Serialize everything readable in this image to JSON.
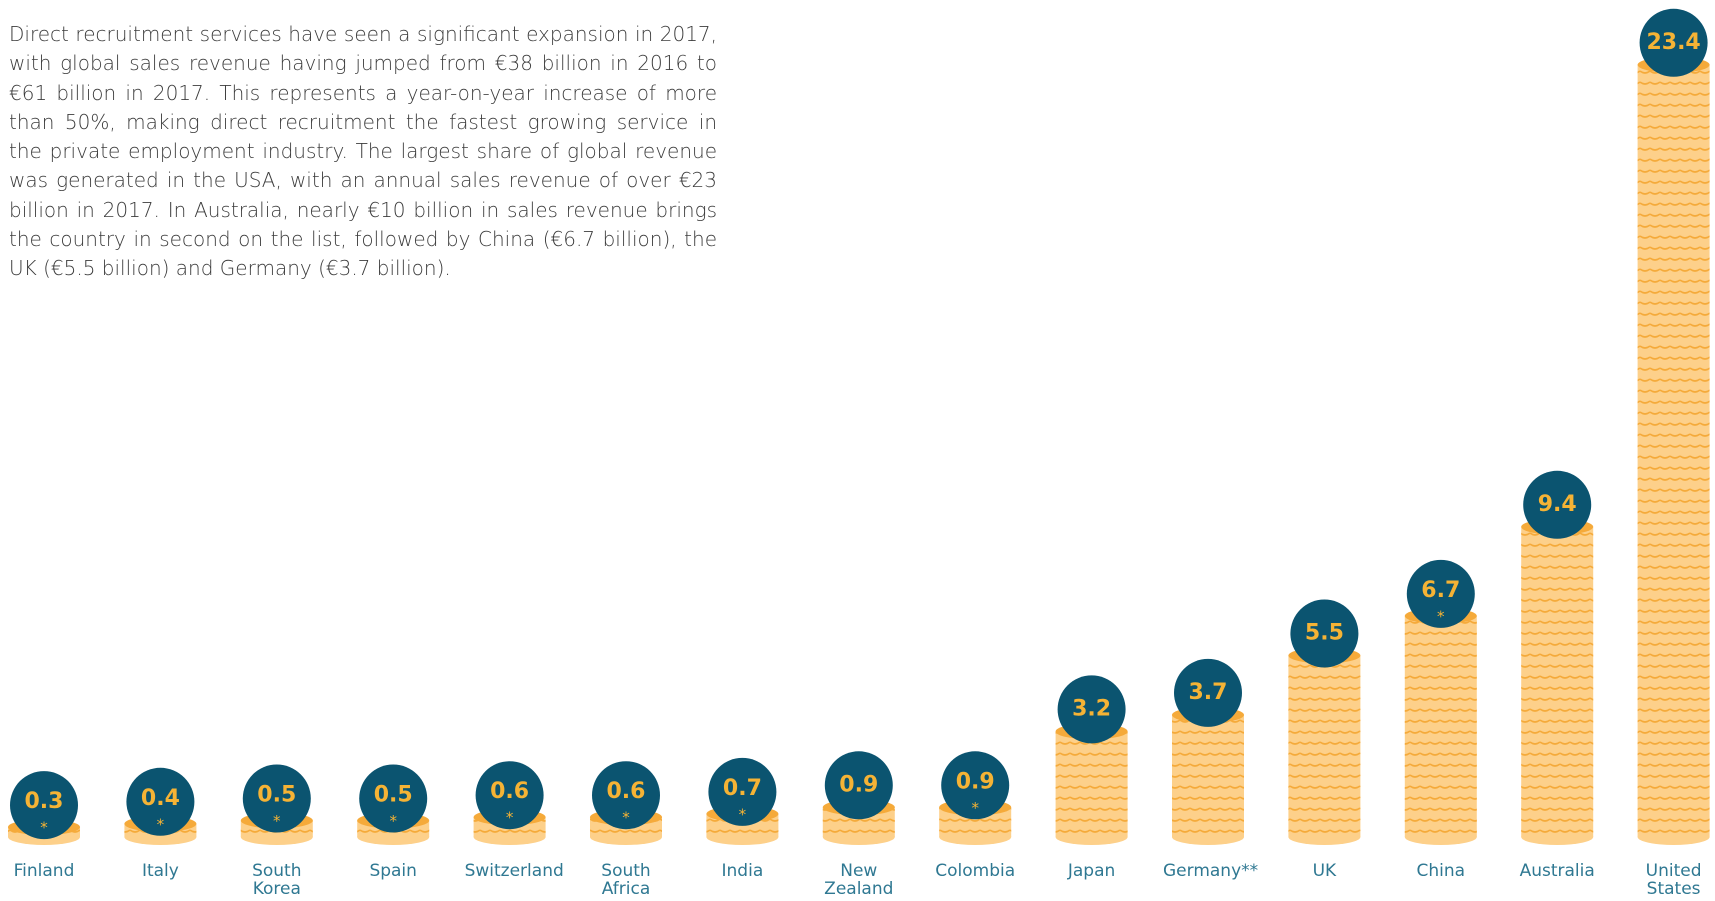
{
  "chart_data": {
    "type": "coin-stack-bar",
    "description": "Direct recruitment services have seen a significant expansion in 2017, with global sales revenue having jumped from €38 billion in 2016 to €61 billion in 2017. This represents a year-on-year increase of more than 50%, making direct recruitment the fastest growing service in the private employment industry. The largest share of global revenue was generated in the USA, with an annual sales revenue of over €23 billion in 2017. In Australia, nearly €10 billion in sales revenue brings the country in second on the list, followed by China (€6.7 billion), the UK (€5.5 billion) and Germany (€3.7 billion).",
    "categories": [
      "Finland",
      "Italy",
      "South Korea",
      "Spain",
      "Switzerland",
      "South Africa",
      "India",
      "New Zealand",
      "Colombia",
      "Japan",
      "Germany**",
      "UK",
      "China",
      "Australia",
      "United States"
    ],
    "values": [
      0.3,
      0.4,
      0.5,
      0.5,
      0.6,
      0.6,
      0.7,
      0.9,
      0.9,
      3.2,
      3.7,
      5.5,
      6.7,
      9.4,
      23.4
    ],
    "footnote_marks": [
      "*",
      "*",
      "*",
      "*",
      "*",
      "*",
      "*",
      null,
      "*",
      null,
      null,
      null,
      "*",
      null,
      null
    ],
    "color": "#fdd08a",
    "stripe_color": "#f5aa3a",
    "label_color": "#0b5470"
  }
}
